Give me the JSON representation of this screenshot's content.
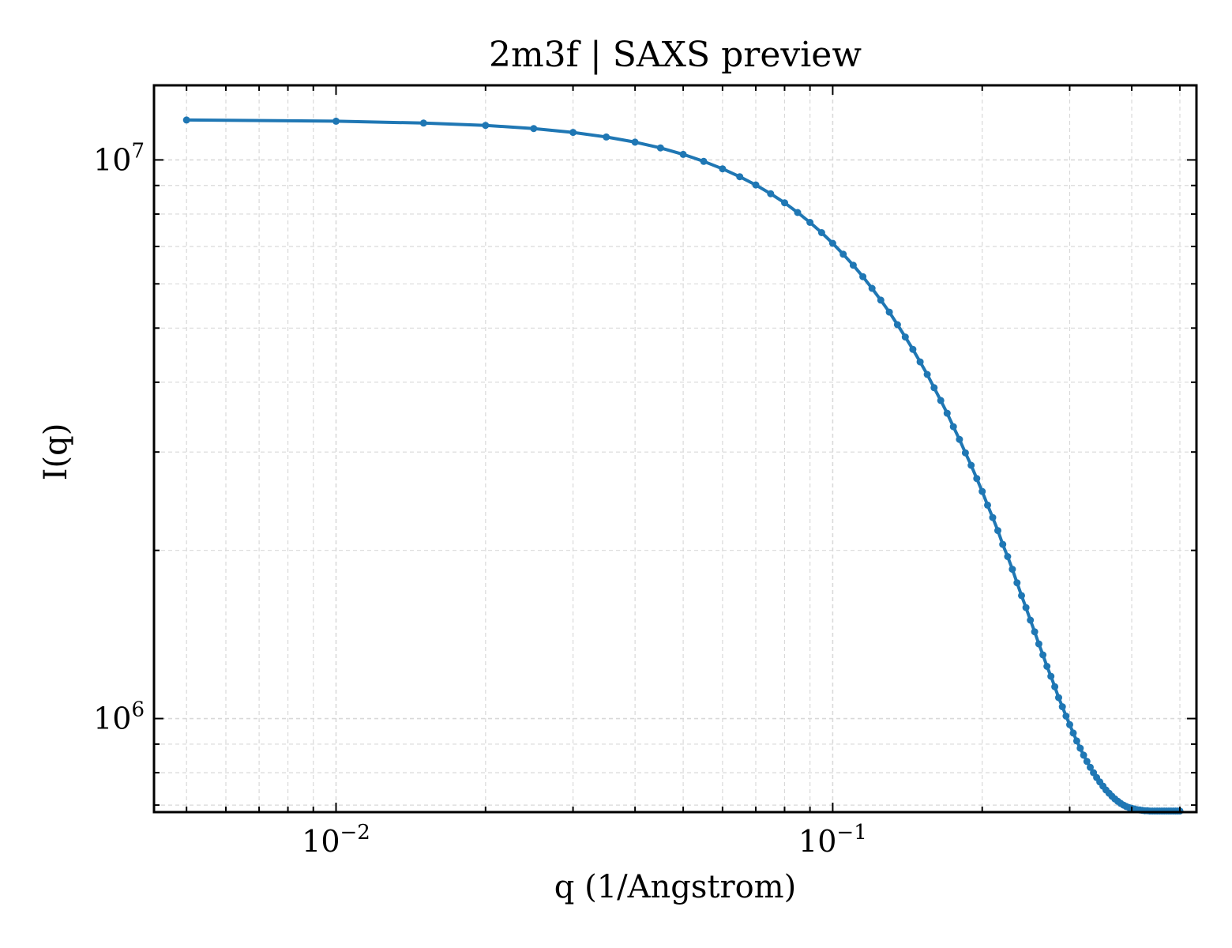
{
  "chart_data": {
    "type": "line",
    "title": "2m3f | SAXS preview",
    "xlabel": "q (1/Angstrom)",
    "ylabel": "I(q)",
    "xscale": "log",
    "yscale": "log",
    "xlim": [
      0.0043,
      0.54
    ],
    "ylim": [
      680000,
      13600000
    ],
    "grid": true,
    "legend": "none",
    "x_ticks": [
      {
        "value": 0.01,
        "base": "10",
        "exp": "−2"
      },
      {
        "value": 0.1,
        "base": "10",
        "exp": "−1"
      }
    ],
    "y_ticks": [
      {
        "value": 1000000,
        "base": "10",
        "exp": "6"
      },
      {
        "value": 10000000,
        "base": "10",
        "exp": "7"
      }
    ],
    "series": [
      {
        "color": "#1f77b4",
        "marker": "circle",
        "x": [
          0.005,
          0.01,
          0.015,
          0.02,
          0.025,
          0.03,
          0.035,
          0.04,
          0.045,
          0.05,
          0.055,
          0.06,
          0.065,
          0.07,
          0.075,
          0.08,
          0.085,
          0.09,
          0.095,
          0.1,
          0.105,
          0.11,
          0.115,
          0.12,
          0.125,
          0.13,
          0.135,
          0.14,
          0.145,
          0.15,
          0.155,
          0.16,
          0.165,
          0.17,
          0.175,
          0.18,
          0.185,
          0.19,
          0.195,
          0.2,
          0.205,
          0.21,
          0.215,
          0.22,
          0.225,
          0.23,
          0.235,
          0.24,
          0.245,
          0.25,
          0.255,
          0.26,
          0.265,
          0.27,
          0.275,
          0.28,
          0.285,
          0.29,
          0.295,
          0.3,
          0.305,
          0.31,
          0.315,
          0.32,
          0.325,
          0.33,
          0.335,
          0.34,
          0.345,
          0.35,
          0.355,
          0.36,
          0.365,
          0.37,
          0.375,
          0.38,
          0.385,
          0.39,
          0.395,
          0.4,
          0.405,
          0.41,
          0.415,
          0.42,
          0.425,
          0.43,
          0.435,
          0.44,
          0.445,
          0.45,
          0.455,
          0.46,
          0.465,
          0.47,
          0.475,
          0.48,
          0.485,
          0.49,
          0.495,
          0.5
        ],
        "y": [
          11790000,
          11730000,
          11640000,
          11530000,
          11380000,
          11200000,
          10990000,
          10760000,
          10510000,
          10230000,
          9940000,
          9640000,
          9330000,
          9020000,
          8700000,
          8380000,
          8050000,
          7730000,
          7410000,
          7090000,
          6780000,
          6480000,
          6180000,
          5890000,
          5610000,
          5340000,
          5070000,
          4820000,
          4580000,
          4350000,
          4130000,
          3910000,
          3710000,
          3520000,
          3330000,
          3160000,
          2990000,
          2840000,
          2690000,
          2550000,
          2410000,
          2290000,
          2170000,
          2050000,
          1950000,
          1850000,
          1750000,
          1660000,
          1580000,
          1500000,
          1430000,
          1360000,
          1300000,
          1240000,
          1190000,
          1140000,
          1090000,
          1050000,
          1010000,
          975000,
          942000,
          912000,
          885000,
          860000,
          838000,
          818000,
          800000,
          784000,
          770000,
          757000,
          745000,
          735000,
          726000,
          718000,
          711000,
          705000,
          700000,
          696000,
          693000,
          691000,
          689000,
          687000,
          686000,
          685000,
          684000,
          684000,
          683000,
          683000,
          683000,
          683000,
          683000,
          683000,
          683000,
          683000,
          683000,
          683000,
          683000,
          683000,
          683000,
          683000
        ]
      }
    ]
  }
}
